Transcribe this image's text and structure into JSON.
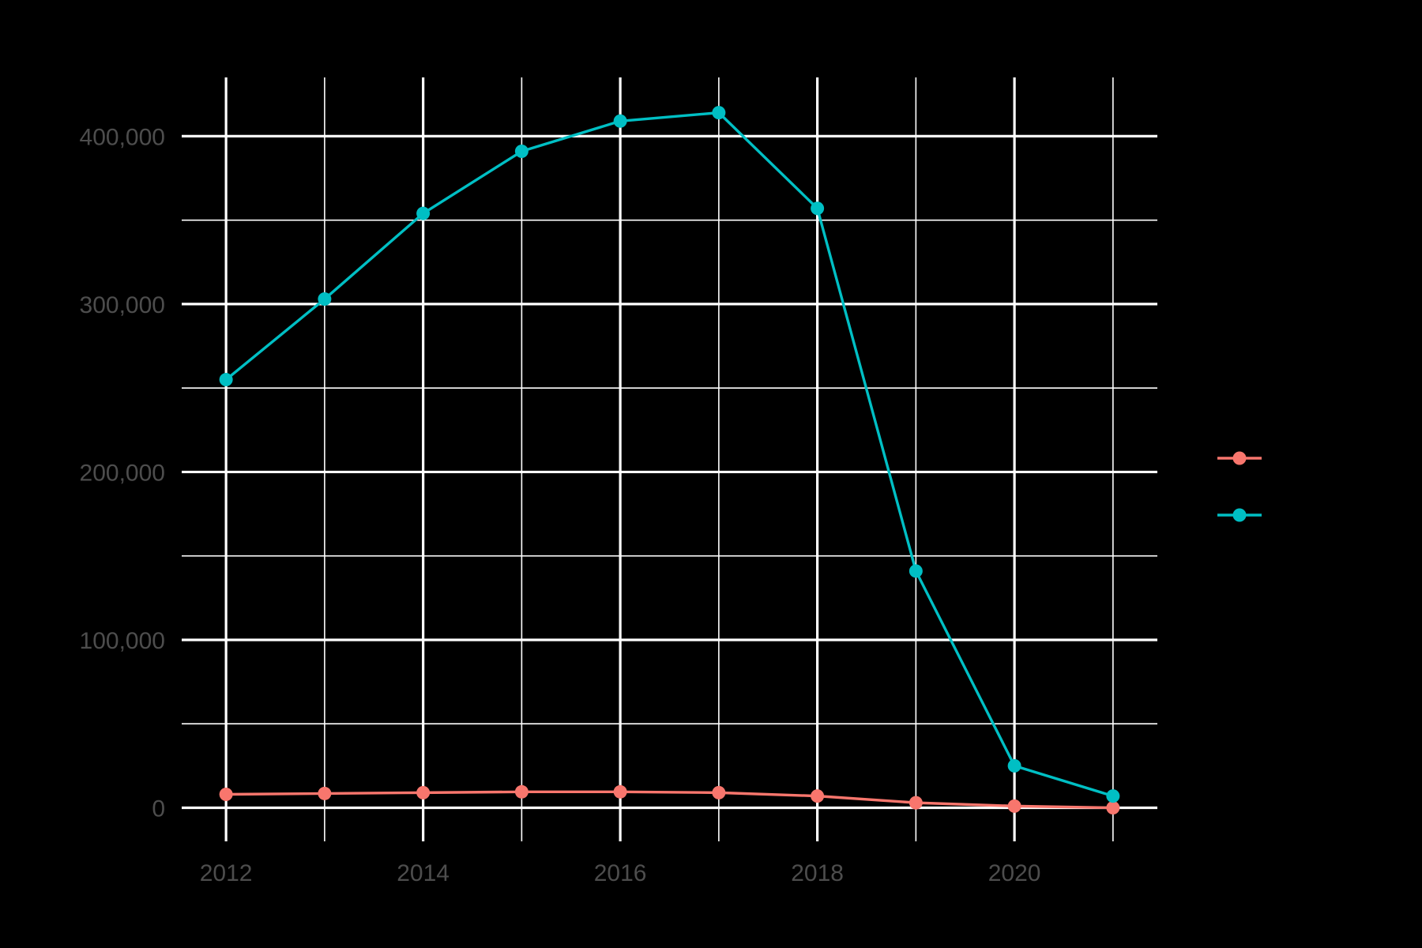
{
  "chart_data": {
    "type": "line",
    "title": "",
    "xlabel": "",
    "ylabel": "",
    "x": [
      2012,
      2013,
      2014,
      2015,
      2016,
      2017,
      2018,
      2019,
      2020,
      2021
    ],
    "x_major_ticks": [
      2012,
      2014,
      2016,
      2018,
      2020
    ],
    "x_tick_labels": [
      "2012",
      "2014",
      "2016",
      "2018",
      "2020"
    ],
    "xlim": [
      2011.55,
      2021.45
    ],
    "y_major_ticks": [
      0,
      100000,
      200000,
      300000,
      400000
    ],
    "y_tick_labels": [
      "0",
      "100,000",
      "200,000",
      "300,000",
      "400,000"
    ],
    "ylim": [
      -20000,
      435000
    ],
    "grid": true,
    "legend_position": "right",
    "background": "#000000",
    "grid_color": "#ffffff",
    "tick_label_color": "#4d4d4d",
    "series": [
      {
        "color": "#F8766D",
        "values": [
          8000,
          8500,
          9000,
          9500,
          9500,
          9000,
          7000,
          3000,
          1000,
          0
        ]
      },
      {
        "color": "#00BFC4",
        "values": [
          255000,
          303000,
          354000,
          391000,
          409000,
          414000,
          357000,
          141000,
          25000,
          7000
        ]
      }
    ]
  }
}
